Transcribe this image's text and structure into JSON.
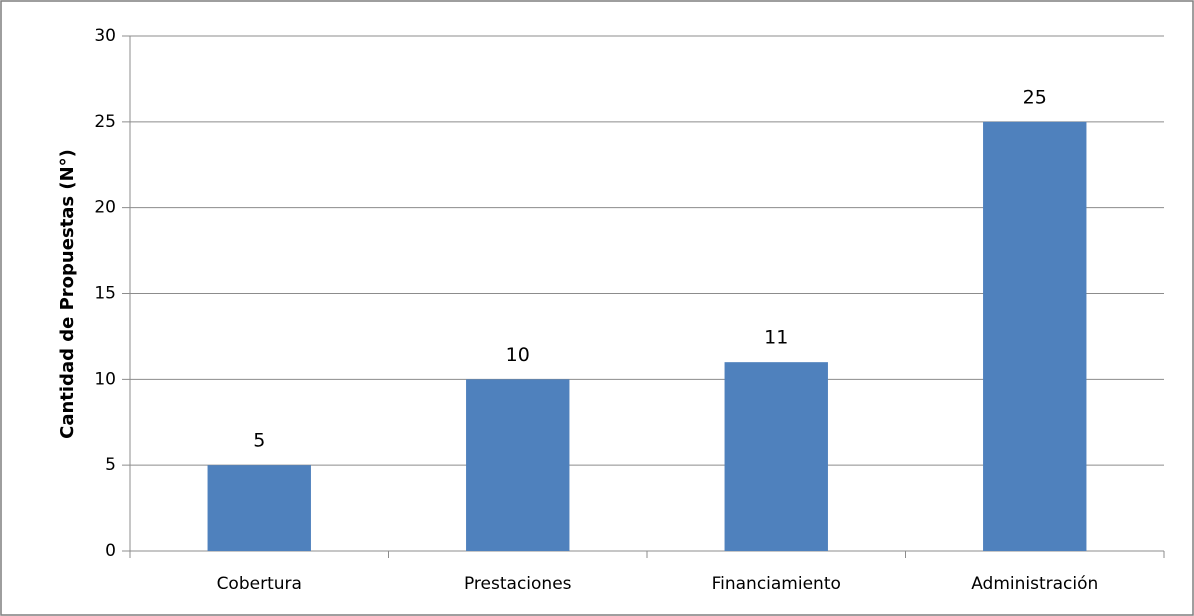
{
  "chart_data": {
    "type": "bar",
    "title": "",
    "xlabel": "",
    "ylabel": "Cantidad de Propuestas (N°)",
    "categories": [
      "Cobertura",
      "Prestaciones",
      "Financiamiento",
      "Administración"
    ],
    "values": [
      5,
      10,
      11,
      25
    ],
    "data_labels": [
      "5",
      "10",
      "11",
      "25"
    ],
    "ylim": [
      0,
      30
    ],
    "yticks": [
      0,
      5,
      10,
      15,
      20,
      25,
      30
    ],
    "ytick_labels": [
      "0",
      "5",
      "10",
      "15",
      "20",
      "25",
      "30"
    ],
    "grid": true,
    "legend": "none",
    "colors": {
      "bar": "#4f81bd",
      "grid": "#8c8c8c",
      "axis": "#8c8c8c",
      "border": "#7f7f7f"
    }
  }
}
